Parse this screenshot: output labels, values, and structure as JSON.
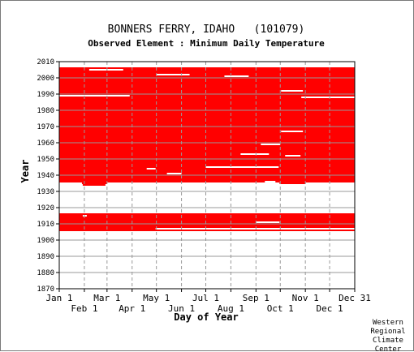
{
  "chart_data": {
    "type": "heatmap",
    "title": "BONNERS FERRY, IDAHO   (101079)",
    "subtitle": "Observed Element : Minimum Daily Temperature",
    "xlabel": "Day of Year",
    "ylabel": "Year",
    "credit": [
      "Western",
      "Regional",
      "Climate",
      "Center"
    ],
    "xlim": [
      1,
      366
    ],
    "ylim": [
      1870,
      2010
    ],
    "grid": true,
    "colors": {
      "data": "#ff0000",
      "grid": "#999999",
      "missing_line": "#ffffff"
    },
    "x_ticks_top": [
      {
        "label": "Jan 1",
        "day": 1
      },
      {
        "label": "Mar 1",
        "day": 60
      },
      {
        "label": "May 1",
        "day": 121
      },
      {
        "label": "Jul 1",
        "day": 182
      },
      {
        "label": "Sep 1",
        "day": 244
      },
      {
        "label": "Nov 1",
        "day": 305
      },
      {
        "label": "Dec 31",
        "day": 366
      }
    ],
    "x_ticks_bottom": [
      {
        "label": "Feb 1",
        "day": 32
      },
      {
        "label": "Apr 1",
        "day": 91
      },
      {
        "label": "Jun 1",
        "day": 152
      },
      {
        "label": "Aug 1",
        "day": 213
      },
      {
        "label": "Oct 1",
        "day": 274
      },
      {
        "label": "Dec 1",
        "day": 335
      }
    ],
    "y_ticks": [
      1870,
      1880,
      1890,
      1900,
      1910,
      1920,
      1930,
      1940,
      1950,
      1960,
      1970,
      1980,
      1990,
      2000,
      2010
    ],
    "data_blocks": [
      {
        "year_start": 1935,
        "year_end": 2006,
        "day_start": 1,
        "day_end": 366
      },
      {
        "year_start": 1906,
        "year_end": 1916,
        "day_start": 1,
        "day_end": 366
      }
    ],
    "missing_gaps": [
      {
        "year": 2005,
        "day_start": 38,
        "day_end": 80
      },
      {
        "year": 2002,
        "day_start": 121,
        "day_end": 162
      },
      {
        "year": 2001,
        "day_start": 205,
        "day_end": 235
      },
      {
        "year": 1992,
        "day_start": 275,
        "day_end": 302
      },
      {
        "year": 1989,
        "day_start": 1,
        "day_end": 88
      },
      {
        "year": 1988,
        "day_start": 300,
        "day_end": 366
      },
      {
        "year": 1967,
        "day_start": 275,
        "day_end": 302
      },
      {
        "year": 1959,
        "day_start": 250,
        "day_end": 274
      },
      {
        "year": 1953,
        "day_start": 225,
        "day_end": 260
      },
      {
        "year": 1952,
        "day_start": 280,
        "day_end": 299
      },
      {
        "year": 1945,
        "day_start": 182,
        "day_end": 272
      },
      {
        "year": 1944,
        "day_start": 109,
        "day_end": 120
      },
      {
        "year": 1941,
        "day_start": 134,
        "day_end": 152
      },
      {
        "year": 1936,
        "day_start": 255,
        "day_end": 268
      },
      {
        "year": 1935,
        "day_start": 1,
        "day_end": 29
      },
      {
        "year": 1935,
        "day_start": 60,
        "day_end": 273
      },
      {
        "year": 1935,
        "day_start": 305,
        "day_end": 366
      },
      {
        "year": 1915,
        "day_start": 30,
        "day_end": 35
      },
      {
        "year": 1911,
        "day_start": 244,
        "day_end": 273
      },
      {
        "year": 1907,
        "day_start": 120,
        "day_end": 366
      }
    ],
    "extra_marks": [
      {
        "year": 1934,
        "day_start": 30,
        "day_end": 58,
        "state": "data"
      }
    ]
  }
}
